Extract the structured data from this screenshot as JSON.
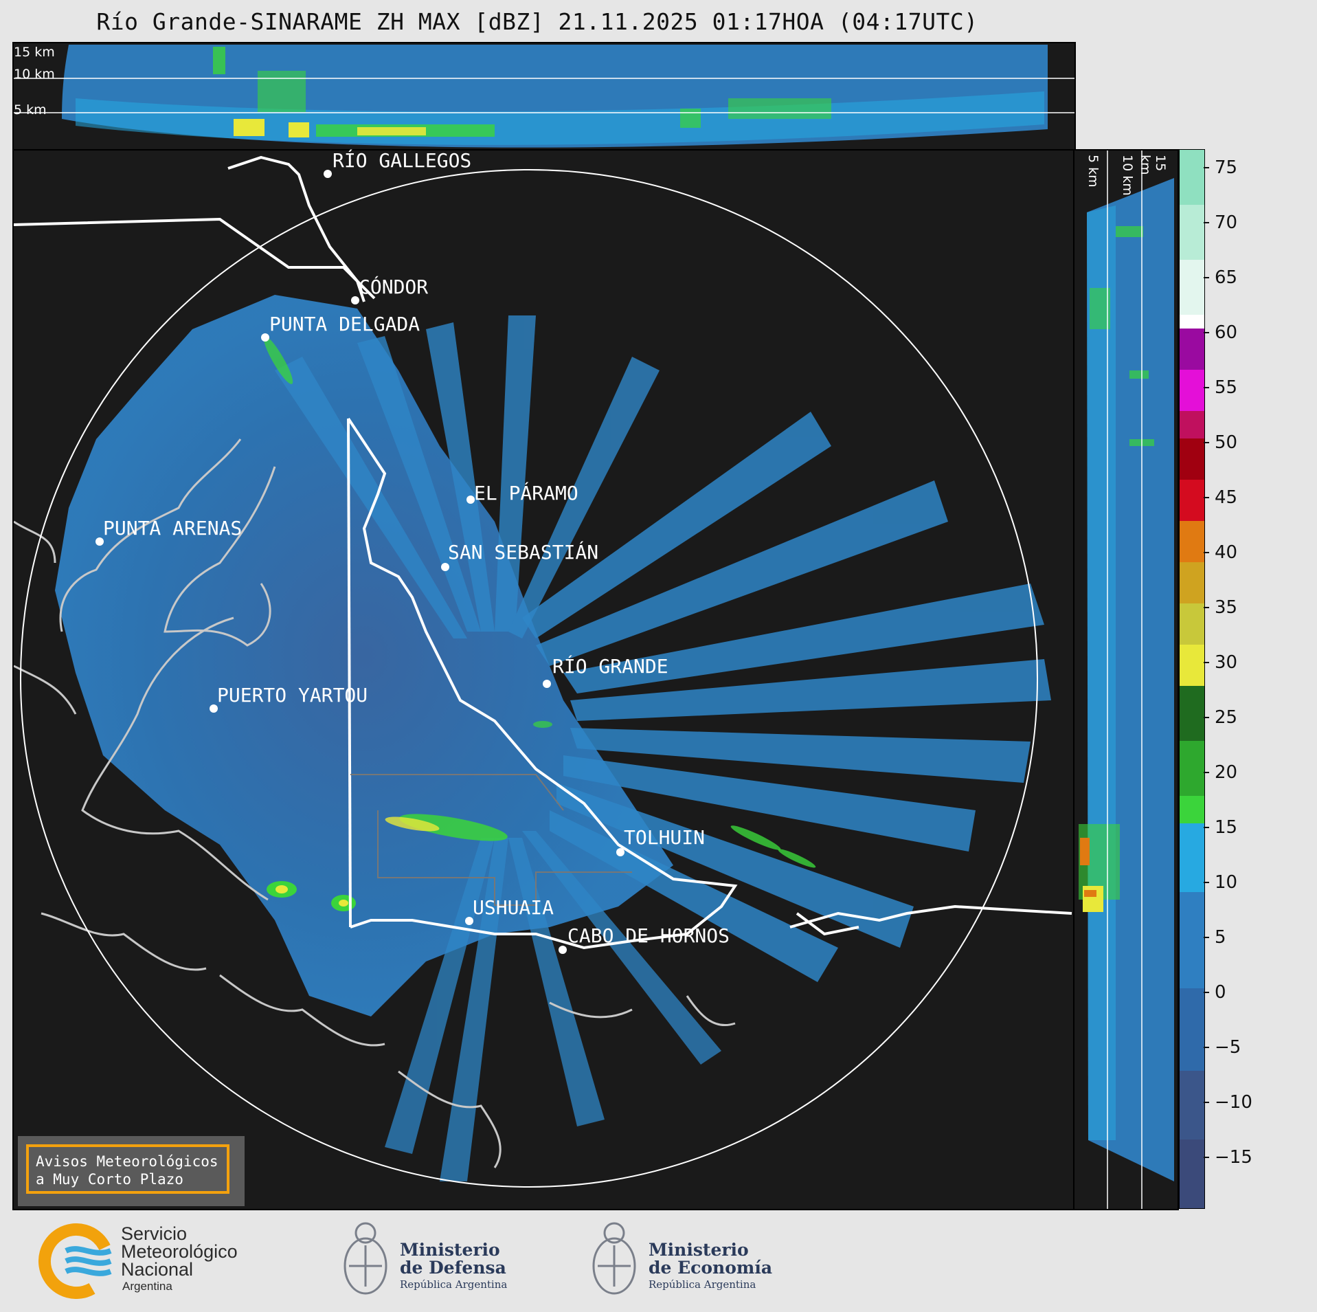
{
  "title": "Río Grande-SINARAME ZH MAX [dBZ] 21.11.2025 01:17HOA (04:17UTC)",
  "top_profile": {
    "altitudes": [
      "15 km",
      "10 km",
      "5 km"
    ]
  },
  "right_profile": {
    "altitudes": [
      "5 km",
      "10 km",
      "15 km"
    ]
  },
  "colorbar": {
    "unit": "dBZ",
    "ticks": [
      "75",
      "70",
      "65",
      "60",
      "55",
      "50",
      "45",
      "40",
      "35",
      "30",
      "25",
      "20",
      "15",
      "10",
      "5",
      "0",
      "−5",
      "−10",
      "−15"
    ],
    "colors": {
      "light_blue_low": "#3b4a7a",
      "blue": "#2f7fc1",
      "cyan": "#27a9e1",
      "green": "#3bd43b",
      "yellow": "#e8e83a",
      "orange": "#e07a12",
      "red": "#d40b1f",
      "magenta": "#e40fd8",
      "white": "#ffffff",
      "mint": "#8fe0c0"
    }
  },
  "cities": [
    {
      "id": "rio-gallegos",
      "name": "RÍO GALLEGOS"
    },
    {
      "id": "condor",
      "name": "CÓNDOR"
    },
    {
      "id": "punta-delgada",
      "name": "PUNTA DELGADA"
    },
    {
      "id": "el-paramo",
      "name": "EL PÁRAMO"
    },
    {
      "id": "punta-arenas",
      "name": "PUNTA ARENAS"
    },
    {
      "id": "san-sebastian",
      "name": "SAN SEBASTIÁN"
    },
    {
      "id": "rio-grande",
      "name": "RÍO GRANDE"
    },
    {
      "id": "puerto-yartou",
      "name": "PUERTO YARTOU"
    },
    {
      "id": "tolhuin",
      "name": "TOLHUIN"
    },
    {
      "id": "ushuaia",
      "name": "USHUAIA"
    },
    {
      "id": "cabo-de-hornos",
      "name": "CABO DE HORNOS"
    }
  ],
  "avisos": {
    "line1": "Avisos Meteorológicos",
    "line2": "a Muy Corto Plazo"
  },
  "footer": {
    "smn": {
      "line1": "Servicio",
      "line2": "Meteorológico",
      "line3": "Nacional",
      "country": "Argentina"
    },
    "defensa": {
      "line1": "Ministerio",
      "line2": "de Defensa",
      "sub": "República Argentina"
    },
    "economia": {
      "line1": "Ministerio",
      "line2": "de Economía",
      "sub": "República Argentina"
    }
  }
}
